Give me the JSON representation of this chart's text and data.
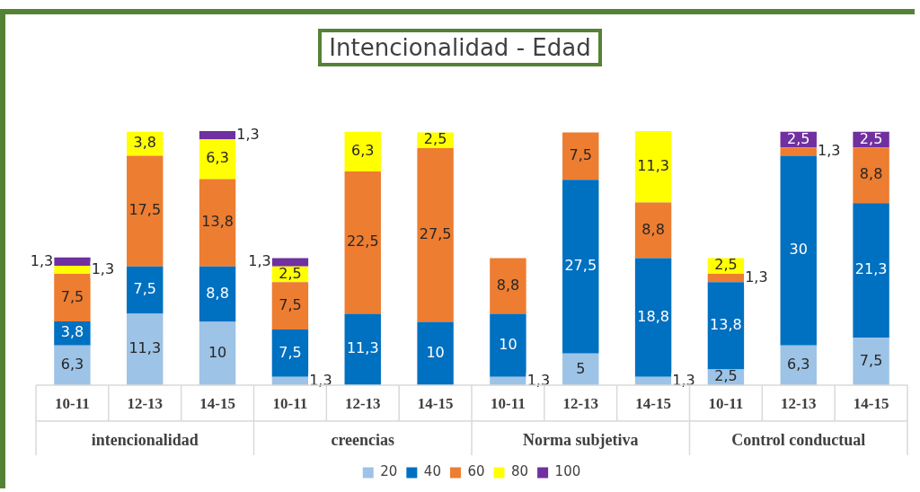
{
  "chart_data": {
    "type": "bar",
    "title": "Intencionalidad - Edad",
    "stacked": true,
    "legend": "bottom",
    "grid": false,
    "categories": [
      "10-11",
      "12-13",
      "14-15",
      "10-11",
      "12-13",
      "14-15",
      "10-11",
      "12-13",
      "14-15",
      "10-11",
      "12-13",
      "14-15"
    ],
    "annotations": [
      "intencionalidad",
      "creencias",
      "Norma subjetiva",
      "Control conductual"
    ],
    "series": [
      {
        "name": "20",
        "color": "#9dc3e6",
        "values": [
          6.3,
          11.3,
          10,
          1.3,
          null,
          null,
          1.3,
          5,
          1.3,
          2.5,
          6.3,
          7.5
        ],
        "value_labels": [
          "6,3",
          "11,3",
          "10",
          "1,3",
          null,
          null,
          "1,3",
          "5",
          "1,3",
          "2,5",
          "6,3",
          "7,5"
        ]
      },
      {
        "name": "40",
        "color": "#0070c0",
        "values": [
          3.8,
          7.5,
          8.8,
          7.5,
          11.3,
          10,
          10,
          27.5,
          18.8,
          13.8,
          30,
          21.3
        ],
        "value_labels": [
          "3,8",
          "7,5",
          "8,8",
          "7,5",
          "11,3",
          "10",
          "10",
          "27,5",
          "18,8",
          "13,8",
          "30",
          "21,3"
        ]
      },
      {
        "name": "60",
        "color": "#ed7d31",
        "values": [
          7.5,
          17.5,
          13.8,
          7.5,
          22.5,
          27.5,
          8.8,
          7.5,
          8.8,
          1.3,
          1.3,
          8.8
        ],
        "value_labels": [
          "7,5",
          "17,5",
          "13,8",
          "7,5",
          "22,5",
          "27,5",
          "8,8",
          "7,5",
          "8,8",
          "1,3",
          "1,3",
          "8,8"
        ]
      },
      {
        "name": "80",
        "color": "#ffff00",
        "values": [
          1.3,
          3.8,
          6.3,
          2.5,
          6.3,
          2.5,
          null,
          null,
          11.3,
          2.5,
          null,
          null
        ],
        "value_labels": [
          "1,3",
          "3,8",
          "6,3",
          "2,5",
          "6,3",
          "2,5",
          null,
          null,
          "11,3",
          "2,5",
          null,
          null
        ]
      },
      {
        "name": "100",
        "color": "#7030a0",
        "values": [
          1.3,
          null,
          1.3,
          1.3,
          null,
          null,
          null,
          null,
          null,
          null,
          2.5,
          2.5
        ],
        "value_labels": [
          "1,3",
          null,
          "1,3",
          "1,3",
          null,
          null,
          null,
          null,
          null,
          null,
          "2,5",
          "2,5"
        ]
      }
    ]
  }
}
